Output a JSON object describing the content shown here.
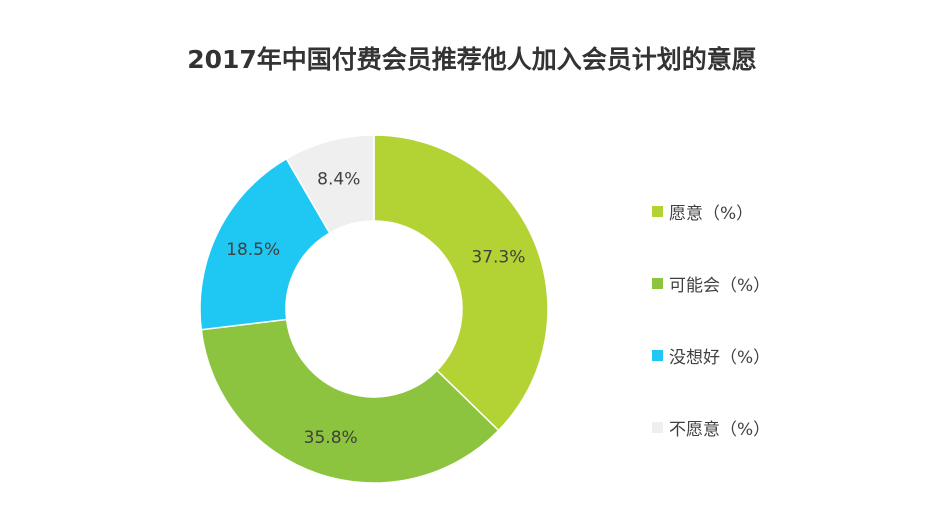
{
  "chart_data": {
    "type": "pie",
    "title": "2017年中国付费会员推荐他人加入会员计划的意愿",
    "categories": [
      "愿意（%）",
      "可能会（%）",
      "没想好（%）",
      "不愿意（%）"
    ],
    "values": [
      37.3,
      35.8,
      18.5,
      8.4
    ],
    "data_labels": [
      "37.3%",
      "35.8%",
      "18.5%",
      "8.4%"
    ],
    "colors": [
      "#b3d334",
      "#8cc43f",
      "#1fc8f3",
      "#efefef"
    ],
    "donut": true,
    "legend_position": "right"
  }
}
